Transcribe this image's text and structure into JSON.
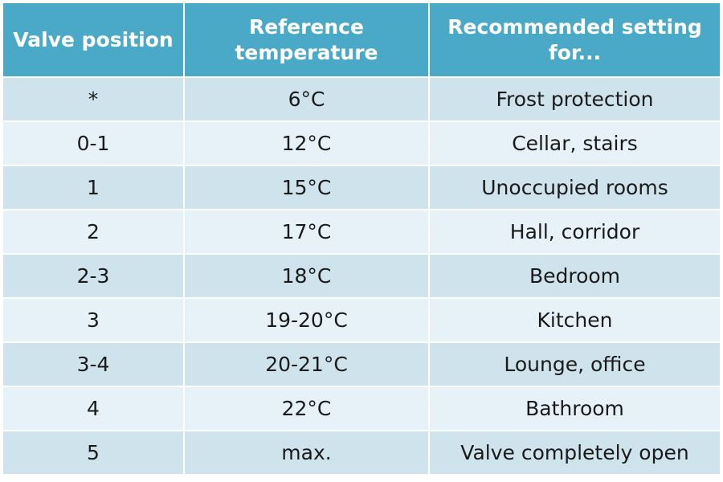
{
  "table": {
    "header": [
      "Valve position",
      "Reference temperature",
      "Recommended setting for..."
    ],
    "rows": [
      [
        "*",
        "6°C",
        "Frost protection"
      ],
      [
        "0-1",
        "12°C",
        "Cellar, stairs"
      ],
      [
        "1",
        "15°C",
        "Unoccupied rooms"
      ],
      [
        "2",
        "17°C",
        "Hall, corridor"
      ],
      [
        "2-3",
        "18°C",
        "Bedroom"
      ],
      [
        "3",
        "19-20°C",
        "Kitchen"
      ],
      [
        "3-4",
        "20-21°C",
        "Lounge, office"
      ],
      [
        "4",
        "22°C",
        "Bathroom"
      ],
      [
        "5",
        "max.",
        "Valve completely open"
      ]
    ]
  }
}
